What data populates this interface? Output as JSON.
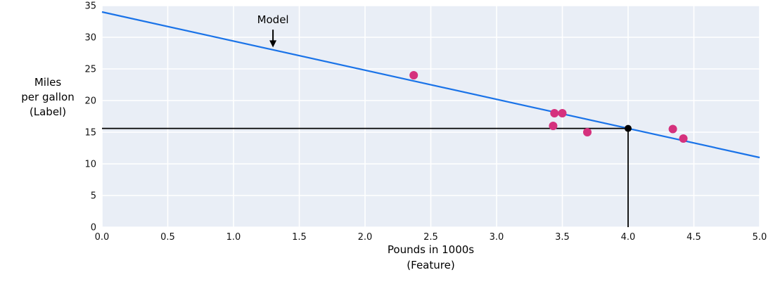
{
  "figure": {
    "y_axis_label": "Miles\nper gallon\n(Label)",
    "x_axis_label": "Pounds in 1000s\n(Feature)"
  },
  "chart_data": {
    "type": "scatter",
    "title": "",
    "xlabel": "Pounds in 1000s (Feature)",
    "ylabel": "Miles per gallon (Label)",
    "xlim": [
      0.0,
      5.0
    ],
    "ylim": [
      0,
      35
    ],
    "grid": true,
    "plot_bg": "#e9eef6",
    "grid_color": "#ffffff",
    "x_tick_values": [
      0.0,
      0.5,
      1.0,
      1.5,
      2.0,
      2.5,
      3.0,
      3.5,
      4.0,
      4.5,
      5.0
    ],
    "x_tick_labels": [
      "0.0",
      "0.5",
      "1.0",
      "1.5",
      "2.0",
      "2.5",
      "3.0",
      "3.5",
      "4.0",
      "4.5",
      "5.0"
    ],
    "y_tick_values": [
      0,
      5,
      10,
      15,
      20,
      25,
      30,
      35
    ],
    "y_tick_labels": [
      "0",
      "5",
      "10",
      "15",
      "20",
      "25",
      "30",
      "35"
    ],
    "series": [
      {
        "name": "model-line",
        "type": "line",
        "color": "#1a73e8",
        "width": 2.2,
        "points": [
          [
            0.0,
            34.0
          ],
          [
            5.0,
            11.0
          ]
        ]
      },
      {
        "name": "data-points",
        "type": "scatter",
        "color": "#d5317d",
        "radius": 6,
        "points": [
          [
            2.37,
            24
          ],
          [
            3.43,
            16
          ],
          [
            3.44,
            18
          ],
          [
            3.5,
            18
          ],
          [
            3.69,
            15
          ],
          [
            4.34,
            15.5
          ],
          [
            4.42,
            14
          ]
        ]
      }
    ],
    "prediction": {
      "x": 4.0,
      "y": 15.6,
      "color": "#000000",
      "dot_radius": 5
    },
    "annotation": {
      "text": "Model",
      "x": 1.3,
      "text_y": 32.2,
      "arrow_from_y": 31.2,
      "arrow_to_y": 28.4,
      "color": "#000000"
    }
  }
}
